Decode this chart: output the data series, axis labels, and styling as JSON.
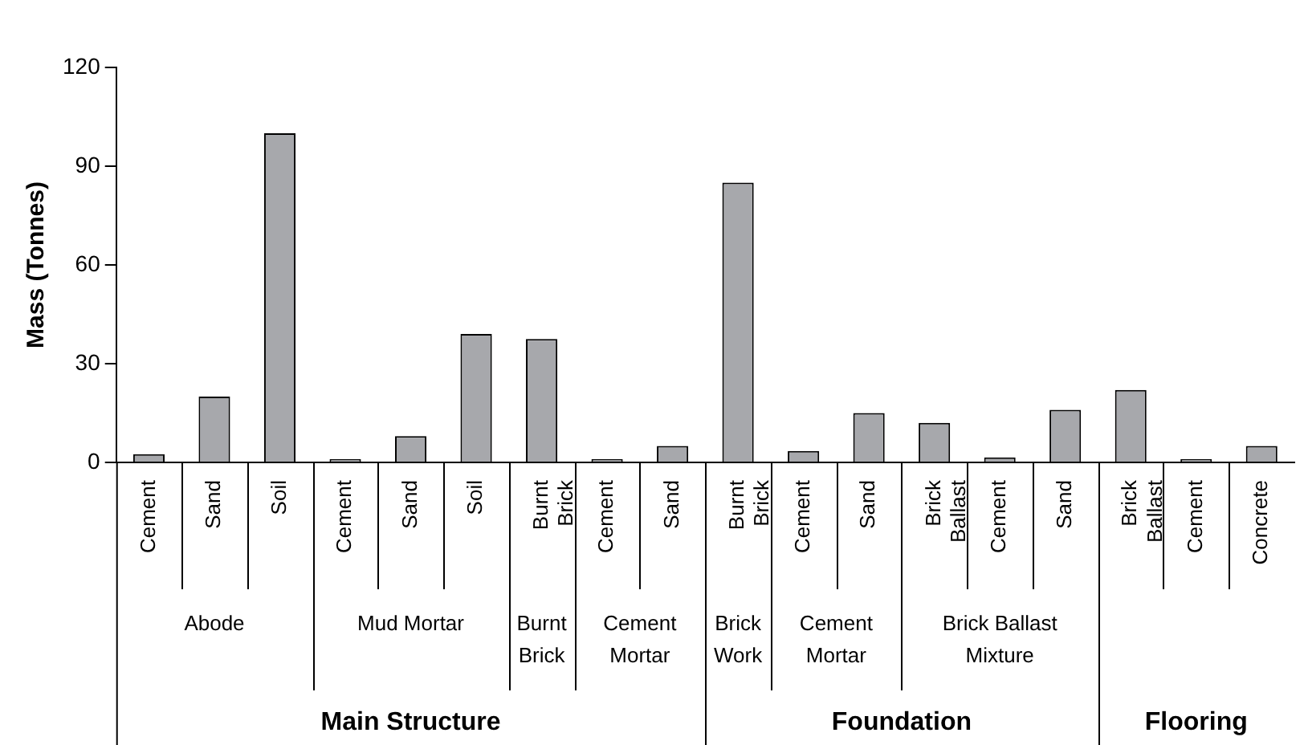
{
  "chart_data": {
    "type": "bar",
    "ylabel": "Mass (Tonnes)",
    "categories": [
      "Cement",
      "Sand",
      "Soil",
      "Cement",
      "Sand",
      "Soil",
      "Burnt Brick",
      "Cement",
      "Sand",
      "Burnt Brick",
      "Cement",
      "Sand",
      "Brick Ballast",
      "Cement",
      "Sand",
      "Brick Ballast",
      "Cement",
      "Concrete"
    ],
    "values": [
      2.5,
      20,
      100,
      1,
      8,
      39,
      37.5,
      1,
      5,
      85,
      3.5,
      15,
      12,
      1.5,
      16,
      22,
      1,
      5
    ],
    "color": "#a7a8ac",
    "ylim": [
      0,
      120
    ],
    "yticks": [
      0,
      30,
      60,
      90,
      120
    ],
    "annotations": [
      "Abode",
      "Mud Mortar",
      "Burnt Brick",
      "Cement Mortar",
      "Brick Work",
      "Cement Mortar",
      "Brick Ballast Mixture",
      "Main Structure",
      "Foundation",
      "Flooring"
    ]
  }
}
